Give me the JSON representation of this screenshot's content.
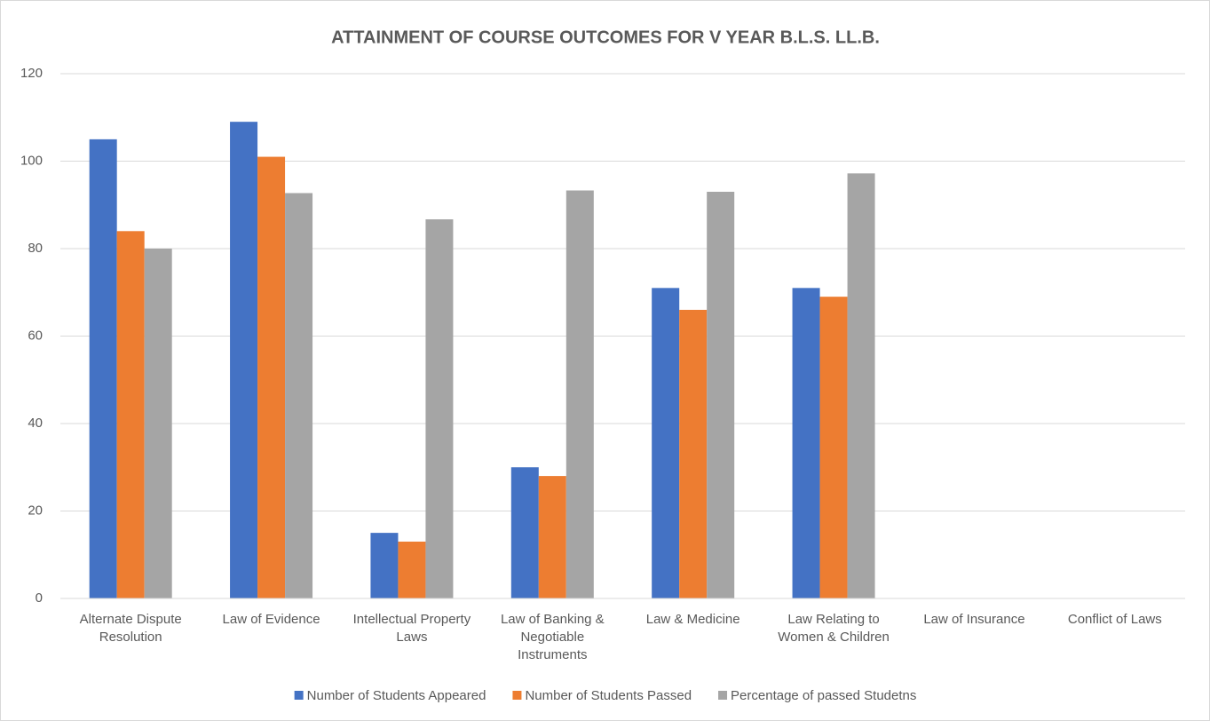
{
  "chart_data": {
    "type": "bar",
    "title": "ATTAINMENT OF COURSE OUTCOMES FOR V YEAR B.L.S. LL.B.",
    "categories": [
      "Alternate Dispute Resolution",
      "Law of Evidence",
      "Intellectual Property Laws",
      "Law of Banking & Negotiable Instruments",
      "Law & Medicine",
      "Law Relating to Women & Children",
      "Law of Insurance",
      "Conflict of Laws"
    ],
    "series": [
      {
        "name": "Number of Students Appeared",
        "color": "#4472c4",
        "values": [
          105,
          109,
          15,
          30,
          71,
          71,
          null,
          null
        ]
      },
      {
        "name": "Number of Students Passed",
        "color": "#ed7d31",
        "values": [
          84,
          101,
          13,
          28,
          66,
          69,
          null,
          null
        ]
      },
      {
        "name": "Percentage of passed Studetns",
        "color": "#a5a5a5",
        "values": [
          80,
          92.7,
          86.7,
          93.3,
          93,
          97.2,
          null,
          null
        ]
      }
    ],
    "ylim": [
      0,
      120
    ],
    "yticks": [
      0,
      20,
      40,
      60,
      80,
      100,
      120
    ],
    "grid": true,
    "legend": "bottom"
  }
}
